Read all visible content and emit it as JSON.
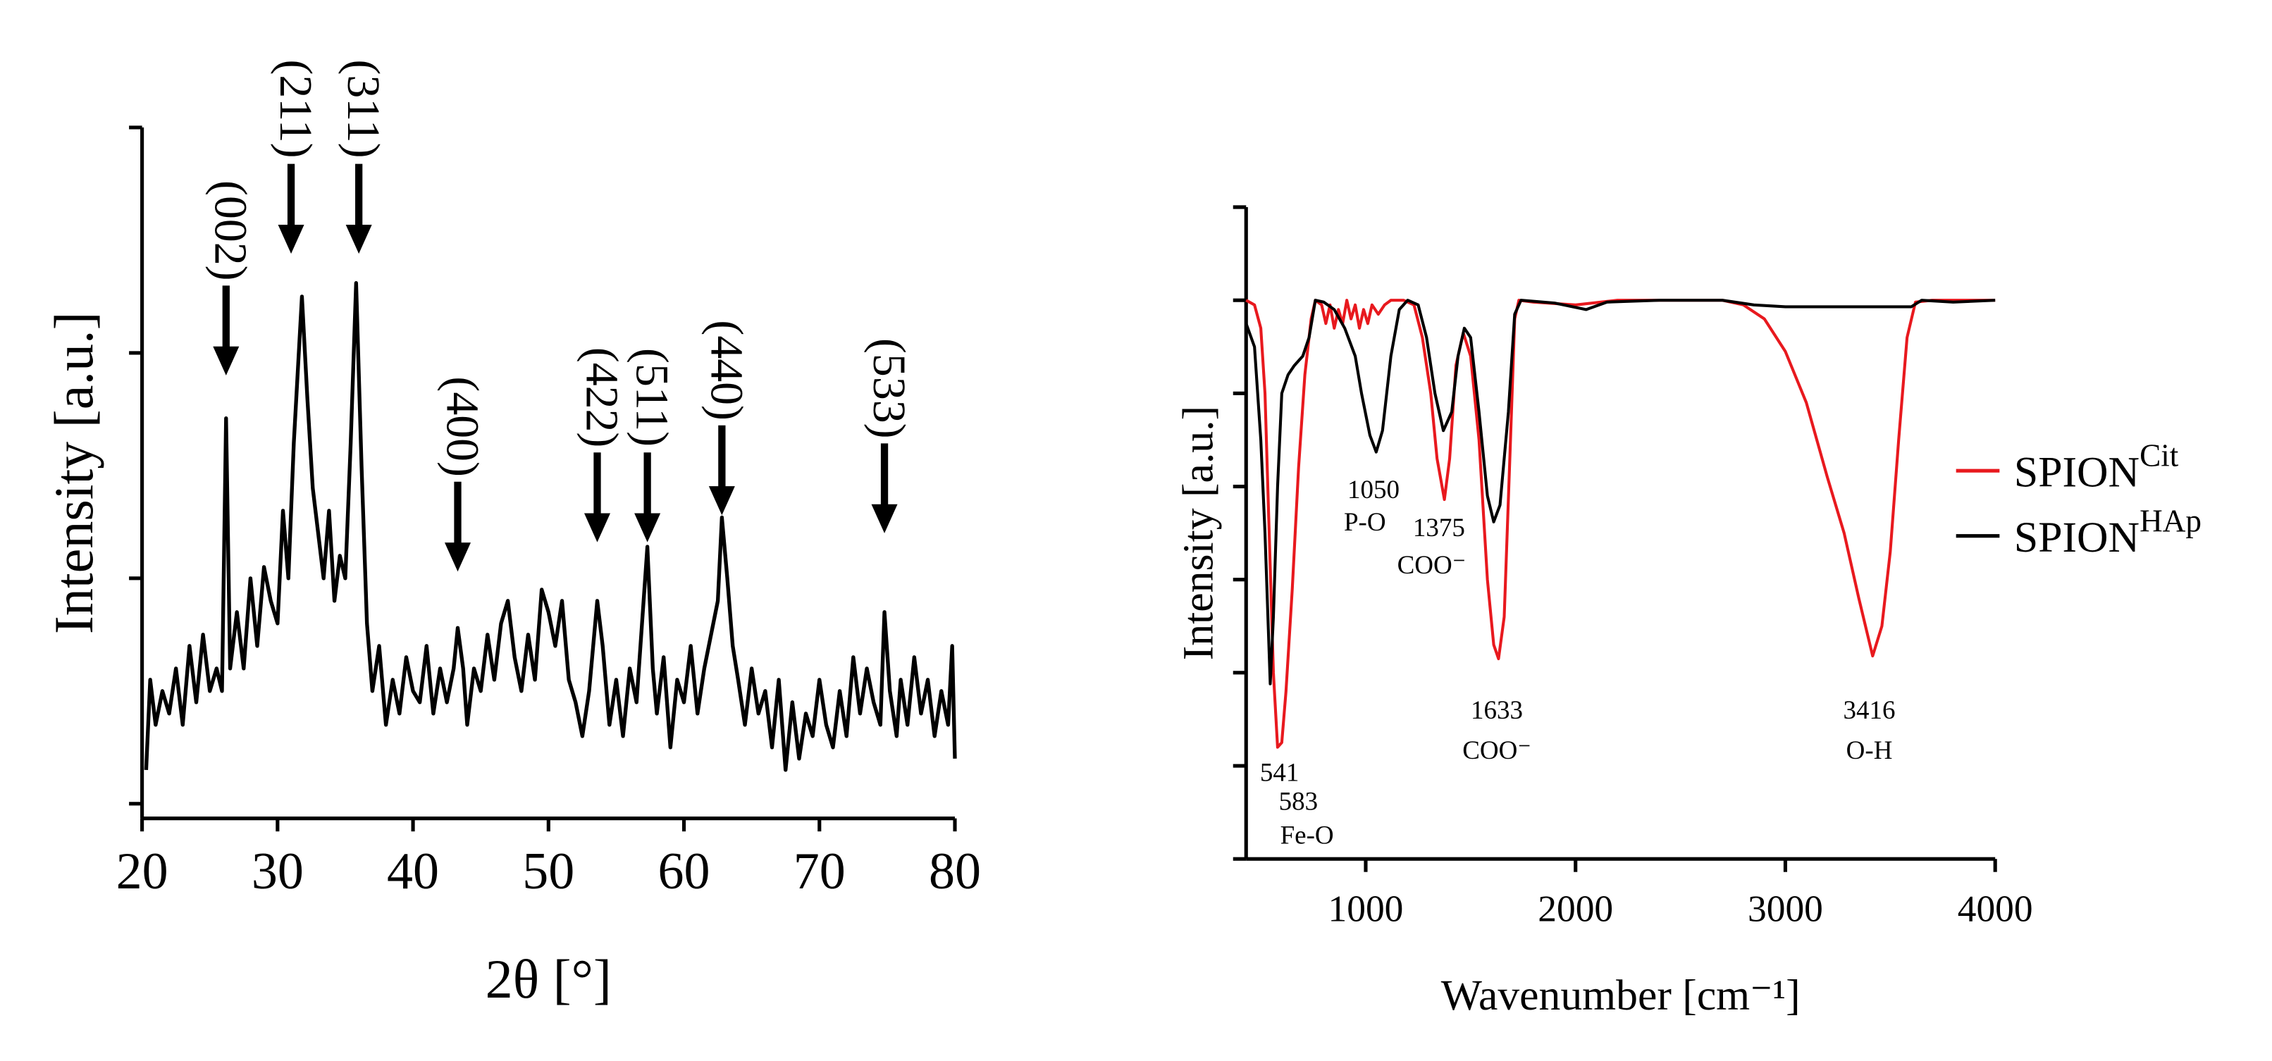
{
  "chart_data": [
    {
      "type": "line",
      "xlabel": "2θ [°]",
      "ylabel": "Intensity [a.u.]",
      "xlim": [
        20,
        80
      ],
      "xticks": [
        20,
        30,
        40,
        50,
        60,
        70,
        80
      ],
      "ylim": [
        -0.065,
        3
      ],
      "yticks": [
        0,
        1,
        2,
        3
      ],
      "x": [
        20.3,
        20.6,
        21,
        21.5,
        22,
        22.5,
        23,
        23.5,
        24,
        24.5,
        25,
        25.5,
        25.9,
        26.2,
        26.5,
        27,
        27.5,
        28,
        28.5,
        29,
        29.5,
        30,
        30.4,
        30.8,
        31.2,
        31.8,
        32.2,
        32.6,
        33,
        33.4,
        33.8,
        34.2,
        34.6,
        35,
        35.4,
        35.8,
        36.2,
        36.6,
        37,
        37.5,
        38,
        38.5,
        39,
        39.5,
        40,
        40.5,
        41,
        41.5,
        42,
        42.5,
        43,
        43.3,
        43.7,
        44,
        44.5,
        45,
        45.5,
        46,
        46.5,
        47,
        47.5,
        48,
        48.5,
        49,
        49.5,
        50,
        50.5,
        51,
        51.5,
        52,
        52.5,
        53,
        53.6,
        54,
        54.5,
        55,
        55.5,
        56,
        56.5,
        57.3,
        57.7,
        58,
        58.5,
        59,
        59.5,
        60,
        60.5,
        61,
        61.5,
        62,
        62.5,
        62.8,
        63.2,
        63.6,
        64,
        64.5,
        65,
        65.5,
        66,
        66.5,
        67,
        67.5,
        68,
        68.5,
        69,
        69.5,
        70,
        70.5,
        71,
        71.5,
        72,
        72.5,
        73,
        73.5,
        74,
        74.5,
        74.8,
        75.2,
        75.7,
        76,
        76.5,
        77,
        77.5,
        78,
        78.5,
        79,
        79.5,
        79.8,
        80
      ],
      "series": [
        {
          "color": "#000000",
          "values": [
            0.15,
            0.55,
            0.35,
            0.5,
            0.4,
            0.6,
            0.35,
            0.7,
            0.45,
            0.75,
            0.5,
            0.6,
            0.5,
            1.71,
            0.6,
            0.85,
            0.6,
            1.0,
            0.7,
            1.05,
            0.9,
            0.8,
            1.3,
            1.0,
            1.6,
            2.25,
            1.8,
            1.4,
            1.2,
            1.0,
            1.3,
            0.9,
            1.1,
            1.0,
            1.6,
            2.31,
            1.5,
            0.8,
            0.5,
            0.7,
            0.35,
            0.55,
            0.4,
            0.65,
            0.5,
            0.45,
            0.7,
            0.4,
            0.6,
            0.45,
            0.6,
            0.78,
            0.6,
            0.35,
            0.6,
            0.5,
            0.75,
            0.55,
            0.8,
            0.9,
            0.65,
            0.5,
            0.75,
            0.55,
            0.95,
            0.85,
            0.7,
            0.9,
            0.55,
            0.45,
            0.3,
            0.5,
            0.9,
            0.7,
            0.35,
            0.55,
            0.3,
            0.6,
            0.45,
            1.14,
            0.6,
            0.4,
            0.65,
            0.25,
            0.55,
            0.45,
            0.7,
            0.4,
            0.6,
            0.75,
            0.9,
            1.27,
            1.0,
            0.7,
            0.55,
            0.35,
            0.6,
            0.4,
            0.5,
            0.25,
            0.55,
            0.15,
            0.45,
            0.2,
            0.4,
            0.3,
            0.55,
            0.35,
            0.25,
            0.5,
            0.3,
            0.65,
            0.4,
            0.6,
            0.45,
            0.35,
            0.85,
            0.5,
            0.3,
            0.55,
            0.35,
            0.65,
            0.4,
            0.55,
            0.3,
            0.5,
            0.35,
            0.7,
            0.2
          ]
        }
      ],
      "annotation_style": "arrow",
      "annotations": [
        {
          "text": "(002)",
          "x": 26.2,
          "y": 1.9
        },
        {
          "text": "(211)",
          "x": 31,
          "y": 2.44
        },
        {
          "text": "(311)",
          "x": 36,
          "y": 2.44
        },
        {
          "text": "(400)",
          "x": 43.3,
          "y": 1.03
        },
        {
          "text": "(422)",
          "x": 53.6,
          "y": 1.16
        },
        {
          "text": "(511)",
          "x": 57.3,
          "y": 1.16
        },
        {
          "text": "(440)",
          "x": 62.8,
          "y": 1.28
        },
        {
          "text": "(533)",
          "x": 74.8,
          "y": 1.2
        }
      ]
    },
    {
      "type": "line",
      "xlabel": "Wavenumber [cm⁻¹]",
      "ylabel": "Intensity [a.u.]",
      "xlim": [
        430,
        4000
      ],
      "xticks": [
        1000,
        2000,
        3000,
        4000
      ],
      "ylim": [
        0,
        7
      ],
      "yticks": [
        0,
        1,
        2,
        3,
        4,
        5,
        6,
        7
      ],
      "legend": "right",
      "series": [
        {
          "name": "SPION",
          "name_sup": "Cit",
          "color": "#e8191e",
          "x": [
            430,
            470,
            500,
            520,
            540,
            560,
            580,
            600,
            620,
            650,
            680,
            710,
            740,
            760,
            790,
            810,
            830,
            850,
            870,
            890,
            910,
            930,
            950,
            970,
            990,
            1010,
            1030,
            1060,
            1090,
            1120,
            1180,
            1230,
            1270,
            1310,
            1340,
            1375,
            1400,
            1430,
            1465,
            1500,
            1540,
            1580,
            1610,
            1633,
            1660,
            1690,
            1710,
            1730,
            1800,
            2000,
            2200,
            2400,
            2700,
            2800,
            2900,
            3000,
            3100,
            3200,
            3280,
            3350,
            3416,
            3460,
            3500,
            3540,
            3580,
            3620,
            3700,
            4000
          ],
          "values": [
            6.0,
            5.95,
            5.7,
            5.0,
            3.5,
            2.0,
            1.2,
            1.25,
            1.8,
            2.9,
            4.2,
            5.2,
            5.8,
            6.0,
            5.95,
            5.75,
            5.95,
            5.7,
            5.9,
            5.75,
            6.0,
            5.8,
            5.95,
            5.7,
            5.9,
            5.75,
            5.95,
            5.85,
            5.95,
            6.0,
            6.0,
            5.95,
            5.6,
            5.0,
            4.3,
            3.86,
            4.3,
            5.3,
            5.65,
            5.4,
            4.5,
            3.0,
            2.3,
            2.15,
            2.6,
            4.5,
            5.8,
            6.0,
            5.98,
            5.95,
            6.0,
            6.0,
            6.0,
            5.95,
            5.8,
            5.45,
            4.9,
            4.1,
            3.5,
            2.8,
            2.18,
            2.5,
            3.3,
            4.5,
            5.6,
            5.98,
            6.0,
            6.0
          ]
        },
        {
          "name": "SPION",
          "name_sup": "HAp",
          "color": "#000000",
          "x": [
            430,
            470,
            500,
            520,
            545,
            560,
            580,
            600,
            630,
            660,
            700,
            730,
            760,
            800,
            850,
            900,
            950,
            980,
            1020,
            1050,
            1080,
            1120,
            1160,
            1200,
            1250,
            1290,
            1330,
            1370,
            1410,
            1440,
            1470,
            1500,
            1540,
            1580,
            1610,
            1640,
            1680,
            1710,
            1740,
            1900,
            2050,
            2150,
            2400,
            2700,
            2850,
            3000,
            3300,
            3600,
            3650,
            3800,
            4000
          ],
          "values": [
            5.75,
            5.5,
            4.5,
            3.5,
            1.88,
            2.6,
            4.0,
            5.0,
            5.2,
            5.3,
            5.4,
            5.6,
            6.0,
            5.98,
            5.9,
            5.7,
            5.4,
            5.0,
            4.55,
            4.37,
            4.6,
            5.4,
            5.9,
            6.0,
            5.95,
            5.6,
            5.0,
            4.6,
            4.8,
            5.4,
            5.7,
            5.6,
            4.8,
            3.9,
            3.62,
            3.8,
            4.8,
            5.85,
            6.0,
            5.97,
            5.9,
            5.98,
            6.0,
            6.0,
            5.95,
            5.93,
            5.93,
            5.93,
            6.0,
            5.98,
            6.0
          ]
        }
      ],
      "annotation_style": "text",
      "annotations": [
        {
          "text": "541",
          "x": 589,
          "y": 0.9
        },
        {
          "text": "583",
          "x": 679,
          "y": 0.59
        },
        {
          "text": "Fe-O",
          "x": 720,
          "y": 0.23
        },
        {
          "text": "1050",
          "x": 1037,
          "y": 3.94
        },
        {
          "text": "P-O",
          "x": 996,
          "y": 3.59
        },
        {
          "text": "1375",
          "x": 1349,
          "y": 3.53
        },
        {
          "text": "COO⁻",
          "x": 1314,
          "y": 3.13
        },
        {
          "text": "1633",
          "x": 1625,
          "y": 1.57
        },
        {
          "text": "COO⁻",
          "x": 1625,
          "y": 1.14
        },
        {
          "text": "3416",
          "x": 3400,
          "y": 1.57
        },
        {
          "text": "O-H",
          "x": 3400,
          "y": 1.14
        }
      ]
    }
  ]
}
